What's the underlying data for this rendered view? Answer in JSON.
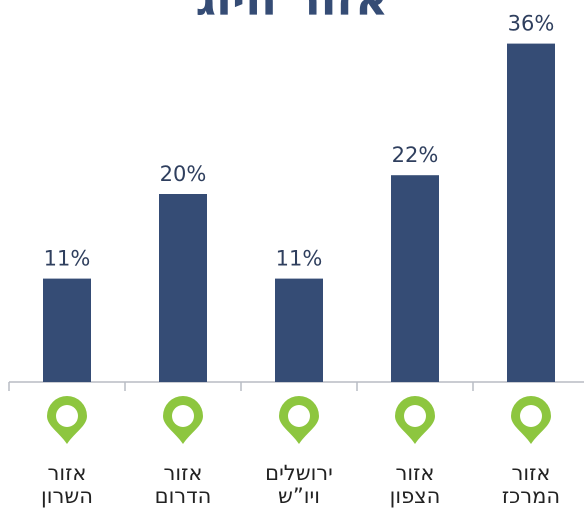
{
  "chart_data": {
    "type": "bar",
    "title": "אזור חיוג",
    "categories": [
      [
        "אזור",
        "השרון"
      ],
      [
        "אזור",
        "הדרום"
      ],
      [
        "ירושלים",
        "ויו”ש"
      ],
      [
        "אזור",
        "הצפון"
      ],
      [
        "אזור",
        "המרכז"
      ]
    ],
    "values": [
      11,
      20,
      11,
      22,
      36
    ],
    "value_labels": [
      "11%",
      "20%",
      "11%",
      "22%",
      "36%"
    ],
    "color": "#354c75",
    "ylim": [
      0,
      40
    ]
  }
}
